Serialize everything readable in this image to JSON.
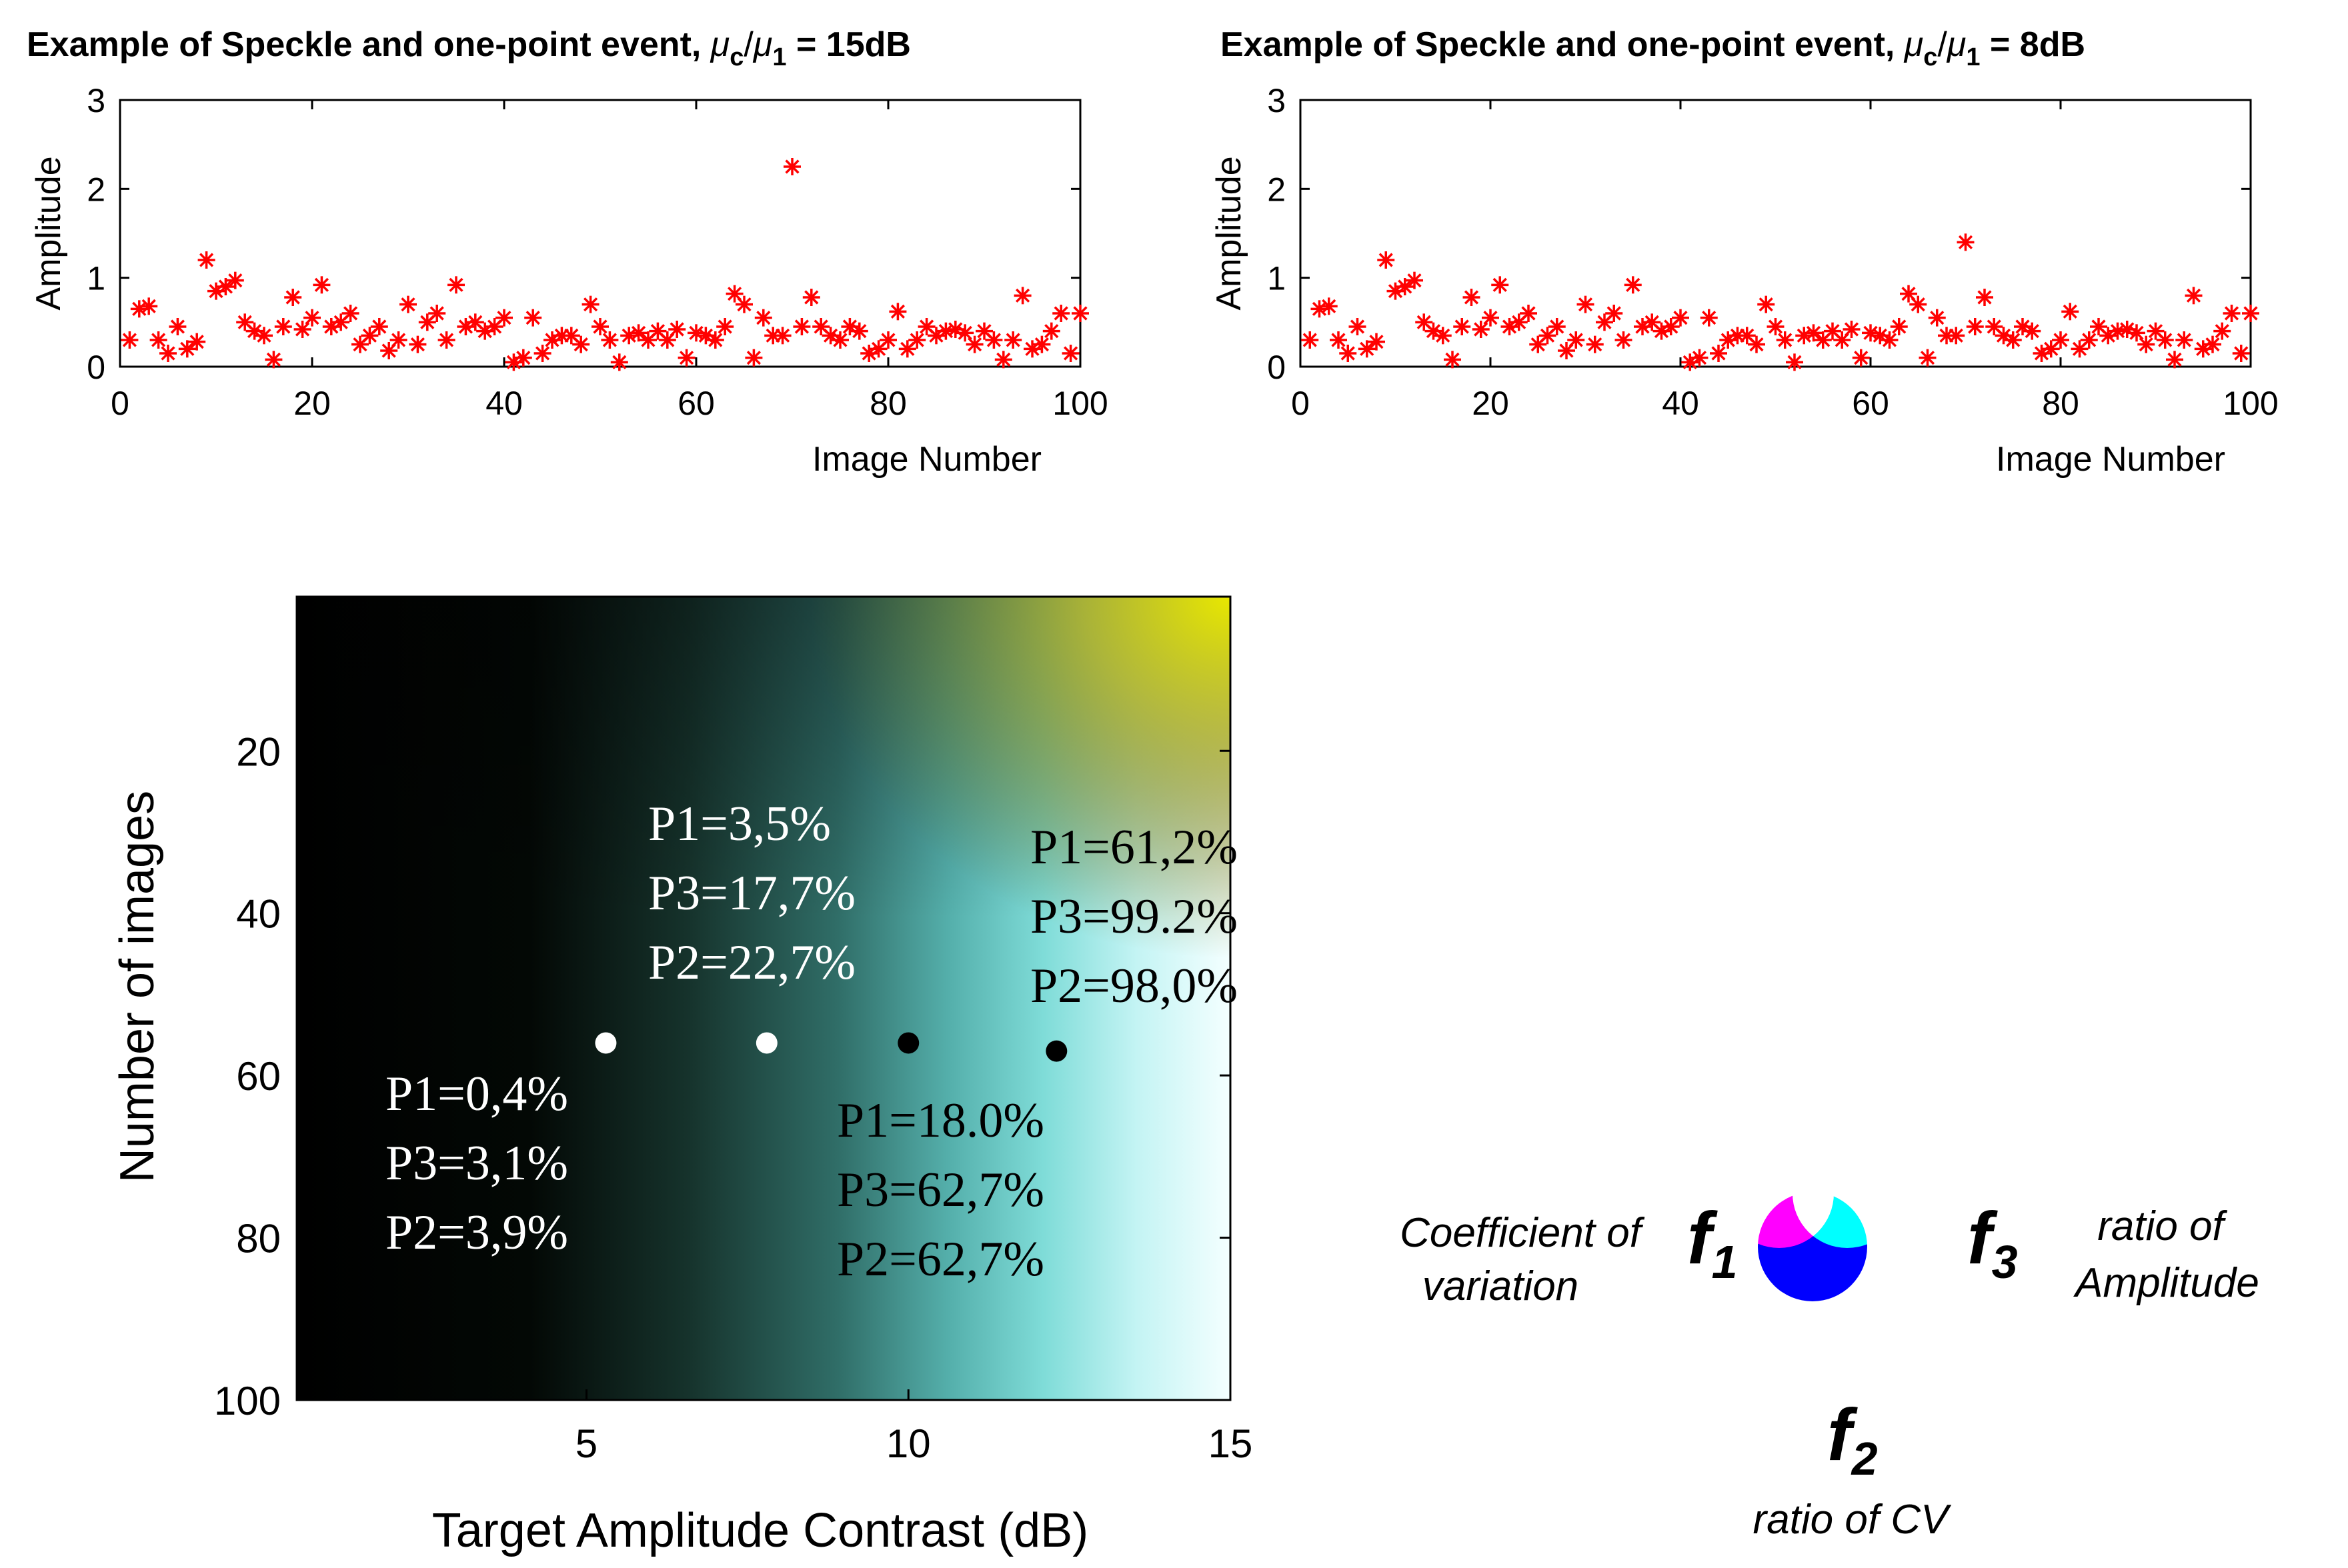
{
  "chart_data": [
    {
      "type": "scatter",
      "title": "Example of Speckle and one-point event, μc/μ1 = 15dB",
      "title_parts": {
        "prefix": "Example of Speckle and one-point event, ",
        "mu": "μ",
        "sub_c": "c",
        "slash": "/",
        "sub_1": "1",
        "suffix": " = 15dB"
      },
      "xlabel": "Image Number",
      "ylabel": "Amplitude",
      "xlim": [
        0,
        100
      ],
      "ylim": [
        0,
        3
      ],
      "xticks": [
        "0",
        "20",
        "40",
        "60",
        "80",
        "100"
      ],
      "yticks": [
        "0",
        "1",
        "2",
        "3"
      ],
      "marker": "*",
      "color": "#ff0000",
      "series": [
        {
          "name": "amplitude",
          "x": [
            1,
            2,
            3,
            4,
            5,
            6,
            7,
            8,
            9,
            10,
            11,
            12,
            13,
            14,
            15,
            16,
            17,
            18,
            19,
            20,
            21,
            22,
            23,
            24,
            25,
            26,
            27,
            28,
            29,
            30,
            31,
            32,
            33,
            34,
            35,
            36,
            37,
            38,
            39,
            40,
            41,
            42,
            43,
            44,
            45,
            46,
            47,
            48,
            49,
            50,
            51,
            52,
            53,
            54,
            55,
            56,
            57,
            58,
            59,
            60,
            61,
            62,
            63,
            64,
            65,
            66,
            67,
            68,
            69,
            70,
            71,
            72,
            73,
            74,
            75,
            76,
            77,
            78,
            79,
            80,
            81,
            82,
            83,
            84,
            85,
            86,
            87,
            88,
            89,
            90,
            91,
            92,
            93,
            94,
            95,
            96,
            97,
            98,
            99,
            100
          ],
          "values": [
            0.3,
            0.65,
            0.68,
            0.3,
            0.15,
            0.45,
            0.2,
            0.28,
            1.2,
            0.85,
            0.9,
            0.97,
            0.5,
            0.4,
            0.35,
            0.08,
            0.45,
            0.78,
            0.42,
            0.55,
            0.92,
            0.45,
            0.5,
            0.6,
            0.25,
            0.35,
            0.45,
            0.18,
            0.3,
            0.7,
            0.25,
            0.5,
            0.6,
            0.3,
            0.92,
            0.45,
            0.5,
            0.4,
            0.45,
            0.55,
            0.05,
            0.1,
            0.55,
            0.15,
            0.3,
            0.35,
            0.35,
            0.25,
            0.7,
            0.45,
            0.3,
            0.05,
            0.35,
            0.38,
            0.3,
            0.4,
            0.3,
            0.42,
            0.1,
            0.38,
            0.35,
            0.3,
            0.45,
            0.82,
            0.7,
            0.1,
            0.55,
            0.35,
            0.35,
            2.25,
            0.45,
            0.78,
            0.45,
            0.35,
            0.3,
            0.45,
            0.4,
            0.15,
            0.2,
            0.3,
            0.62,
            0.2,
            0.3,
            0.45,
            0.35,
            0.4,
            0.42,
            0.38,
            0.25,
            0.4,
            0.3,
            0.08,
            0.3,
            0.8,
            0.2,
            0.25,
            0.4,
            0.6,
            0.15,
            0.6
          ]
        }
      ]
    },
    {
      "type": "scatter",
      "title": "Example of Speckle and one-point event, μc/μ1 = 8dB",
      "title_parts": {
        "prefix": "Example of Speckle and one-point event, ",
        "mu": "μ",
        "sub_c": "c",
        "slash": "/",
        "sub_1": "1",
        "suffix": " = 8dB"
      },
      "xlabel": "Image Number",
      "ylabel": "Amplitude",
      "xlim": [
        0,
        100
      ],
      "ylim": [
        0,
        3
      ],
      "xticks": [
        "0",
        "20",
        "40",
        "60",
        "80",
        "100"
      ],
      "yticks": [
        "0",
        "1",
        "2",
        "3"
      ],
      "marker": "*",
      "color": "#ff0000",
      "series": [
        {
          "name": "amplitude",
          "x": [
            1,
            2,
            3,
            4,
            5,
            6,
            7,
            8,
            9,
            10,
            11,
            12,
            13,
            14,
            15,
            16,
            17,
            18,
            19,
            20,
            21,
            22,
            23,
            24,
            25,
            26,
            27,
            28,
            29,
            30,
            31,
            32,
            33,
            34,
            35,
            36,
            37,
            38,
            39,
            40,
            41,
            42,
            43,
            44,
            45,
            46,
            47,
            48,
            49,
            50,
            51,
            52,
            53,
            54,
            55,
            56,
            57,
            58,
            59,
            60,
            61,
            62,
            63,
            64,
            65,
            66,
            67,
            68,
            69,
            70,
            71,
            72,
            73,
            74,
            75,
            76,
            77,
            78,
            79,
            80,
            81,
            82,
            83,
            84,
            85,
            86,
            87,
            88,
            89,
            90,
            91,
            92,
            93,
            94,
            95,
            96,
            97,
            98,
            99,
            100
          ],
          "values": [
            0.3,
            0.65,
            0.68,
            0.3,
            0.15,
            0.45,
            0.2,
            0.28,
            1.2,
            0.85,
            0.9,
            0.97,
            0.5,
            0.4,
            0.35,
            0.08,
            0.45,
            0.78,
            0.42,
            0.55,
            0.92,
            0.45,
            0.5,
            0.6,
            0.25,
            0.35,
            0.45,
            0.18,
            0.3,
            0.7,
            0.25,
            0.5,
            0.6,
            0.3,
            0.92,
            0.45,
            0.5,
            0.4,
            0.45,
            0.55,
            0.05,
            0.1,
            0.55,
            0.15,
            0.3,
            0.35,
            0.35,
            0.25,
            0.7,
            0.45,
            0.3,
            0.05,
            0.35,
            0.38,
            0.3,
            0.4,
            0.3,
            0.42,
            0.1,
            0.38,
            0.35,
            0.3,
            0.45,
            0.82,
            0.7,
            0.1,
            0.55,
            0.35,
            0.35,
            1.4,
            0.45,
            0.78,
            0.45,
            0.35,
            0.3,
            0.45,
            0.4,
            0.15,
            0.2,
            0.3,
            0.62,
            0.2,
            0.3,
            0.45,
            0.35,
            0.4,
            0.42,
            0.38,
            0.25,
            0.4,
            0.3,
            0.08,
            0.3,
            0.8,
            0.2,
            0.25,
            0.4,
            0.6,
            0.15,
            0.6
          ]
        }
      ]
    },
    {
      "type": "heatmap",
      "title": "",
      "xlabel": "Target Amplitude Contrast (dB)",
      "ylabel": "Number of images",
      "xlim": [
        0.5,
        15
      ],
      "ylim": [
        1,
        100
      ],
      "y_reversed": true,
      "xticks": [
        "5",
        "10",
        "15"
      ],
      "yticks": [
        "20",
        "40",
        "60",
        "80",
        "100"
      ],
      "colormap": "RGB composite: red=f1, green=f3, blue=f2",
      "points": [
        {
          "x": 5.3,
          "y": 56,
          "color": "#ffffff",
          "labels": [
            "P1=0,4%",
            "P3=3,1%",
            "P2=3,9%"
          ]
        },
        {
          "x": 7.8,
          "y": 56,
          "color": "#ffffff",
          "labels": [
            "P1=3,5%",
            "P3=17,7%",
            "P2=22,7%"
          ]
        },
        {
          "x": 10.0,
          "y": 56,
          "color": "#000000",
          "labels": [
            "P1=18.0%",
            "P3=62,7%",
            "P2=62,7%"
          ]
        },
        {
          "x": 12.3,
          "y": 57,
          "color": "#000000",
          "labels": [
            "P1=61,2%",
            "P3=99.2%",
            "P2=98,0%"
          ]
        }
      ]
    }
  ],
  "legend": {
    "f1": {
      "symbol": "f",
      "sub": "1",
      "desc_line1": "Coefficient of",
      "desc_line2": "variation",
      "color": "#ff0000"
    },
    "f3": {
      "symbol": "f",
      "sub": "3",
      "desc_line1": "ratio of",
      "desc_line2": "Amplitude",
      "color": "#00ff00"
    },
    "f2": {
      "symbol": "f",
      "sub": "2",
      "desc_line1": "ratio of CV",
      "color": "#0000ff"
    }
  },
  "colors": {
    "marker": "#ff0000",
    "annotation_light": "#ffffff",
    "annotation_dark": "#000000"
  }
}
